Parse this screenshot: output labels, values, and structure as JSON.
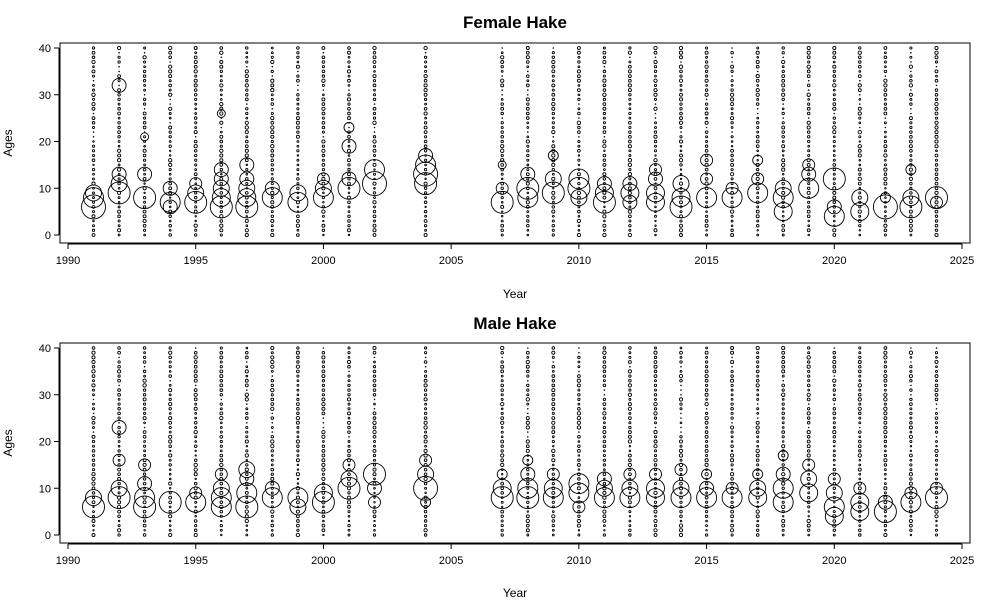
{
  "chart_data": [
    {
      "type": "scatter",
      "subtype": "bubble",
      "title": "Female Hake",
      "xlabel": "Year",
      "ylabel": "Ages",
      "xlim": [
        1990,
        2025
      ],
      "ylim": [
        0,
        40
      ],
      "x_ticks": [
        1990,
        1995,
        2000,
        2005,
        2010,
        2015,
        2020,
        2025
      ],
      "y_ticks": [
        0,
        10,
        20,
        30,
        40
      ],
      "years": [
        1991,
        1992,
        1993,
        1994,
        1995,
        1996,
        1997,
        1998,
        1999,
        2000,
        2001,
        2002,
        2004,
        2007,
        2008,
        2009,
        2010,
        2011,
        2012,
        2013,
        2014,
        2015,
        2016,
        2017,
        2018,
        2019,
        2020,
        2021,
        2022,
        2023,
        2024
      ],
      "ages": [
        0,
        40
      ],
      "large_bubbles": [
        {
          "year": 1991,
          "age": 6,
          "size": 10
        },
        {
          "year": 1991,
          "age": 8,
          "size": 8
        },
        {
          "year": 1991,
          "age": 9,
          "size": 6
        },
        {
          "year": 1992,
          "age": 9,
          "size": 9
        },
        {
          "year": 1992,
          "age": 11,
          "size": 6
        },
        {
          "year": 1992,
          "age": 13,
          "size": 5
        },
        {
          "year": 1992,
          "age": 32,
          "size": 5
        },
        {
          "year": 1993,
          "age": 8,
          "size": 9
        },
        {
          "year": 1993,
          "age": 13,
          "size": 5
        },
        {
          "year": 1993,
          "age": 21,
          "size": 2
        },
        {
          "year": 1994,
          "age": 7,
          "size": 8
        },
        {
          "year": 1994,
          "age": 10,
          "size": 5
        },
        {
          "year": 1994,
          "age": 6,
          "size": 5
        },
        {
          "year": 1995,
          "age": 7,
          "size": 9
        },
        {
          "year": 1995,
          "age": 9,
          "size": 6
        },
        {
          "year": 1995,
          "age": 11,
          "size": 4
        },
        {
          "year": 1996,
          "age": 6,
          "size": 9
        },
        {
          "year": 1996,
          "age": 8,
          "size": 7
        },
        {
          "year": 1996,
          "age": 10,
          "size": 6
        },
        {
          "year": 1996,
          "age": 12,
          "size": 5
        },
        {
          "year": 1996,
          "age": 14,
          "size": 5
        },
        {
          "year": 1996,
          "age": 26,
          "size": 2
        },
        {
          "year": 1997,
          "age": 6,
          "size": 9
        },
        {
          "year": 1997,
          "age": 8,
          "size": 7
        },
        {
          "year": 1997,
          "age": 10,
          "size": 6
        },
        {
          "year": 1997,
          "age": 12,
          "size": 5
        },
        {
          "year": 1997,
          "age": 15,
          "size": 5
        },
        {
          "year": 1998,
          "age": 8,
          "size": 8
        },
        {
          "year": 1998,
          "age": 10,
          "size": 5
        },
        {
          "year": 1999,
          "age": 7,
          "size": 8
        },
        {
          "year": 1999,
          "age": 9,
          "size": 6
        },
        {
          "year": 2000,
          "age": 8,
          "size": 8
        },
        {
          "year": 2000,
          "age": 10,
          "size": 6
        },
        {
          "year": 2000,
          "age": 12,
          "size": 4
        },
        {
          "year": 2001,
          "age": 10,
          "size": 9
        },
        {
          "year": 2001,
          "age": 12,
          "size": 5
        },
        {
          "year": 2001,
          "age": 19,
          "size": 5
        },
        {
          "year": 2001,
          "age": 23,
          "size": 3
        },
        {
          "year": 2002,
          "age": 11,
          "size": 10
        },
        {
          "year": 2002,
          "age": 14,
          "size": 8
        },
        {
          "year": 2004,
          "age": 11,
          "size": 9
        },
        {
          "year": 2004,
          "age": 13,
          "size": 10
        },
        {
          "year": 2004,
          "age": 15,
          "size": 8
        },
        {
          "year": 2004,
          "age": 17,
          "size": 5
        },
        {
          "year": 2007,
          "age": 7,
          "size": 9
        },
        {
          "year": 2007,
          "age": 10,
          "size": 4
        },
        {
          "year": 2007,
          "age": 15,
          "size": 2
        },
        {
          "year": 2008,
          "age": 8,
          "size": 8
        },
        {
          "year": 2008,
          "age": 10,
          "size": 9
        },
        {
          "year": 2008,
          "age": 13,
          "size": 5
        },
        {
          "year": 2009,
          "age": 9,
          "size": 9
        },
        {
          "year": 2009,
          "age": 12,
          "size": 6
        },
        {
          "year": 2009,
          "age": 17,
          "size": 3
        },
        {
          "year": 2010,
          "age": 8,
          "size": 6
        },
        {
          "year": 2010,
          "age": 10,
          "size": 9
        },
        {
          "year": 2010,
          "age": 12,
          "size": 8
        },
        {
          "year": 2011,
          "age": 7,
          "size": 9
        },
        {
          "year": 2011,
          "age": 9,
          "size": 7
        },
        {
          "year": 2011,
          "age": 11,
          "size": 5
        },
        {
          "year": 2012,
          "age": 9,
          "size": 7
        },
        {
          "year": 2012,
          "age": 11,
          "size": 5
        },
        {
          "year": 2012,
          "age": 7,
          "size": 5
        },
        {
          "year": 2013,
          "age": 7,
          "size": 7
        },
        {
          "year": 2013,
          "age": 9,
          "size": 7
        },
        {
          "year": 2013,
          "age": 12,
          "size": 5
        },
        {
          "year": 2013,
          "age": 14,
          "size": 4
        },
        {
          "year": 2014,
          "age": 6,
          "size": 9
        },
        {
          "year": 2014,
          "age": 8,
          "size": 7
        },
        {
          "year": 2014,
          "age": 11,
          "size": 6
        },
        {
          "year": 2015,
          "age": 8,
          "size": 8
        },
        {
          "year": 2015,
          "age": 12,
          "size": 4
        },
        {
          "year": 2015,
          "age": 16,
          "size": 4
        },
        {
          "year": 2016,
          "age": 8,
          "size": 8
        },
        {
          "year": 2016,
          "age": 10,
          "size": 4
        },
        {
          "year": 2017,
          "age": 9,
          "size": 8
        },
        {
          "year": 2017,
          "age": 12,
          "size": 4
        },
        {
          "year": 2017,
          "age": 16,
          "size": 3
        },
        {
          "year": 2018,
          "age": 5,
          "size": 7
        },
        {
          "year": 2018,
          "age": 8,
          "size": 8
        },
        {
          "year": 2018,
          "age": 10,
          "size": 6
        },
        {
          "year": 2019,
          "age": 10,
          "size": 8
        },
        {
          "year": 2019,
          "age": 13,
          "size": 5
        },
        {
          "year": 2019,
          "age": 15,
          "size": 4
        },
        {
          "year": 2020,
          "age": 4,
          "size": 8
        },
        {
          "year": 2020,
          "age": 6,
          "size": 5
        },
        {
          "year": 2020,
          "age": 12,
          "size": 9
        },
        {
          "year": 2021,
          "age": 5,
          "size": 7
        },
        {
          "year": 2021,
          "age": 8,
          "size": 6
        },
        {
          "year": 2022,
          "age": 6,
          "size": 10
        },
        {
          "year": 2022,
          "age": 8,
          "size": 3
        },
        {
          "year": 2023,
          "age": 6,
          "size": 9
        },
        {
          "year": 2023,
          "age": 8,
          "size": 6
        },
        {
          "year": 2023,
          "age": 14,
          "size": 3
        },
        {
          "year": 2024,
          "age": 8,
          "size": 9
        },
        {
          "year": 2024,
          "age": 7,
          "size": 4
        }
      ]
    },
    {
      "type": "scatter",
      "subtype": "bubble",
      "title": "Male Hake",
      "xlabel": "Year",
      "ylabel": "Ages",
      "xlim": [
        1990,
        2025
      ],
      "ylim": [
        0,
        40
      ],
      "x_ticks": [
        1990,
        1995,
        2000,
        2005,
        2010,
        2015,
        2020,
        2025
      ],
      "y_ticks": [
        0,
        10,
        20,
        30,
        40
      ],
      "years": [
        1991,
        1992,
        1993,
        1994,
        1995,
        1996,
        1997,
        1998,
        1999,
        2000,
        2001,
        2002,
        2004,
        2007,
        2008,
        2009,
        2010,
        2011,
        2012,
        2013,
        2014,
        2015,
        2016,
        2017,
        2018,
        2019,
        2020,
        2021,
        2022,
        2023,
        2024
      ],
      "ages": [
        0,
        40
      ],
      "large_bubbles": [
        {
          "year": 1991,
          "age": 6,
          "size": 9
        },
        {
          "year": 1991,
          "age": 8,
          "size": 6
        },
        {
          "year": 1992,
          "age": 8,
          "size": 9
        },
        {
          "year": 1992,
          "age": 10,
          "size": 6
        },
        {
          "year": 1992,
          "age": 16,
          "size": 4
        },
        {
          "year": 1992,
          "age": 23,
          "size": 5
        },
        {
          "year": 1993,
          "age": 6,
          "size": 9
        },
        {
          "year": 1993,
          "age": 8,
          "size": 8
        },
        {
          "year": 1993,
          "age": 11,
          "size": 5
        },
        {
          "year": 1993,
          "age": 15,
          "size": 4
        },
        {
          "year": 1994,
          "age": 7,
          "size": 9
        },
        {
          "year": 1995,
          "age": 7,
          "size": 8
        },
        {
          "year": 1995,
          "age": 9,
          "size": 4
        },
        {
          "year": 1996,
          "age": 6,
          "size": 8
        },
        {
          "year": 1996,
          "age": 8,
          "size": 8
        },
        {
          "year": 1996,
          "age": 10,
          "size": 6
        },
        {
          "year": 1996,
          "age": 13,
          "size": 4
        },
        {
          "year": 1997,
          "age": 6,
          "size": 9
        },
        {
          "year": 1997,
          "age": 9,
          "size": 8
        },
        {
          "year": 1997,
          "age": 12,
          "size": 5
        },
        {
          "year": 1997,
          "age": 14,
          "size": 6
        },
        {
          "year": 1998,
          "age": 8,
          "size": 8
        },
        {
          "year": 1998,
          "age": 10,
          "size": 5
        },
        {
          "year": 1999,
          "age": 6,
          "size": 6
        },
        {
          "year": 1999,
          "age": 8,
          "size": 8
        },
        {
          "year": 2000,
          "age": 7,
          "size": 9
        },
        {
          "year": 2000,
          "age": 9,
          "size": 7
        },
        {
          "year": 2001,
          "age": 10,
          "size": 9
        },
        {
          "year": 2001,
          "age": 12,
          "size": 6
        },
        {
          "year": 2001,
          "age": 15,
          "size": 4
        },
        {
          "year": 2002,
          "age": 13,
          "size": 9
        },
        {
          "year": 2002,
          "age": 10,
          "size": 5
        },
        {
          "year": 2002,
          "age": 7,
          "size": 4
        },
        {
          "year": 2004,
          "age": 10,
          "size": 10
        },
        {
          "year": 2004,
          "age": 13,
          "size": 6
        },
        {
          "year": 2004,
          "age": 16,
          "size": 4
        },
        {
          "year": 2004,
          "age": 7,
          "size": 3
        },
        {
          "year": 2007,
          "age": 8,
          "size": 9
        },
        {
          "year": 2007,
          "age": 10,
          "size": 7
        },
        {
          "year": 2007,
          "age": 13,
          "size": 3
        },
        {
          "year": 2008,
          "age": 8,
          "size": 9
        },
        {
          "year": 2008,
          "age": 10,
          "size": 8
        },
        {
          "year": 2008,
          "age": 13,
          "size": 5
        },
        {
          "year": 2008,
          "age": 16,
          "size": 3
        },
        {
          "year": 2009,
          "age": 8,
          "size": 8
        },
        {
          "year": 2009,
          "age": 10,
          "size": 7
        },
        {
          "year": 2009,
          "age": 13,
          "size": 4
        },
        {
          "year": 2010,
          "age": 9,
          "size": 8
        },
        {
          "year": 2010,
          "age": 11,
          "size": 8
        },
        {
          "year": 2010,
          "age": 6,
          "size": 4
        },
        {
          "year": 2011,
          "age": 8,
          "size": 8
        },
        {
          "year": 2011,
          "age": 10,
          "size": 6
        },
        {
          "year": 2011,
          "age": 12,
          "size": 5
        },
        {
          "year": 2012,
          "age": 8,
          "size": 8
        },
        {
          "year": 2012,
          "age": 10,
          "size": 6
        },
        {
          "year": 2012,
          "age": 13,
          "size": 4
        },
        {
          "year": 2013,
          "age": 8,
          "size": 7
        },
        {
          "year": 2013,
          "age": 10,
          "size": 7
        },
        {
          "year": 2013,
          "age": 13,
          "size": 4
        },
        {
          "year": 2014,
          "age": 8,
          "size": 8
        },
        {
          "year": 2014,
          "age": 10,
          "size": 6
        },
        {
          "year": 2014,
          "age": 14,
          "size": 4
        },
        {
          "year": 2015,
          "age": 8,
          "size": 8
        },
        {
          "year": 2015,
          "age": 10,
          "size": 5
        },
        {
          "year": 2015,
          "age": 13,
          "size": 3
        },
        {
          "year": 2016,
          "age": 8,
          "size": 8
        },
        {
          "year": 2016,
          "age": 10,
          "size": 4
        },
        {
          "year": 2017,
          "age": 8,
          "size": 7
        },
        {
          "year": 2017,
          "age": 10,
          "size": 6
        },
        {
          "year": 2017,
          "age": 13,
          "size": 3
        },
        {
          "year": 2018,
          "age": 7,
          "size": 8
        },
        {
          "year": 2018,
          "age": 10,
          "size": 8
        },
        {
          "year": 2018,
          "age": 13,
          "size": 5
        },
        {
          "year": 2018,
          "age": 17,
          "size": 3
        },
        {
          "year": 2019,
          "age": 9,
          "size": 7
        },
        {
          "year": 2019,
          "age": 12,
          "size": 6
        },
        {
          "year": 2019,
          "age": 15,
          "size": 4
        },
        {
          "year": 2020,
          "age": 4,
          "size": 7
        },
        {
          "year": 2020,
          "age": 6,
          "size": 8
        },
        {
          "year": 2020,
          "age": 9,
          "size": 6
        },
        {
          "year": 2020,
          "age": 12,
          "size": 4
        },
        {
          "year": 2021,
          "age": 5,
          "size": 7
        },
        {
          "year": 2021,
          "age": 7,
          "size": 7
        },
        {
          "year": 2021,
          "age": 10,
          "size": 4
        },
        {
          "year": 2022,
          "age": 5,
          "size": 9
        },
        {
          "year": 2022,
          "age": 7,
          "size": 5
        },
        {
          "year": 2023,
          "age": 7,
          "size": 8
        },
        {
          "year": 2023,
          "age": 9,
          "size": 4
        },
        {
          "year": 2024,
          "age": 8,
          "size": 9
        },
        {
          "year": 2024,
          "age": 10,
          "size": 4
        }
      ]
    }
  ]
}
